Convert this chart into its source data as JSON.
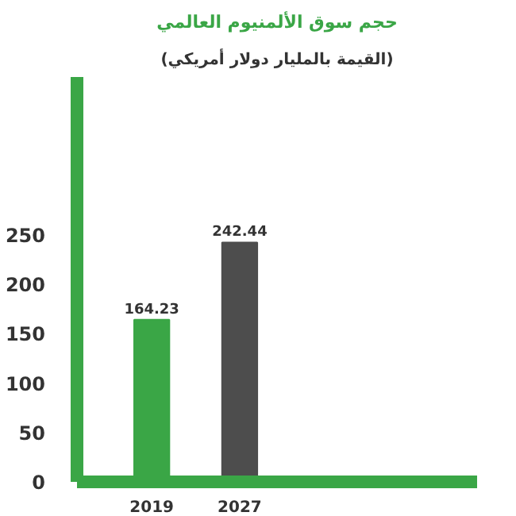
{
  "chart_data": {
    "type": "bar",
    "title": "حجم سوق الألمنيوم العالمي",
    "subtitle": "(القيمة بالمليار دولار أمريكي)",
    "categories": [
      "2019",
      "2027"
    ],
    "values": [
      164.23,
      242.44
    ],
    "colors": [
      "#3aa646",
      "#4d4d4d"
    ],
    "data_labels": true,
    "ylim": [
      0,
      410
    ],
    "yticks": [
      0,
      50,
      100,
      150,
      200,
      250
    ],
    "grid": false
  }
}
